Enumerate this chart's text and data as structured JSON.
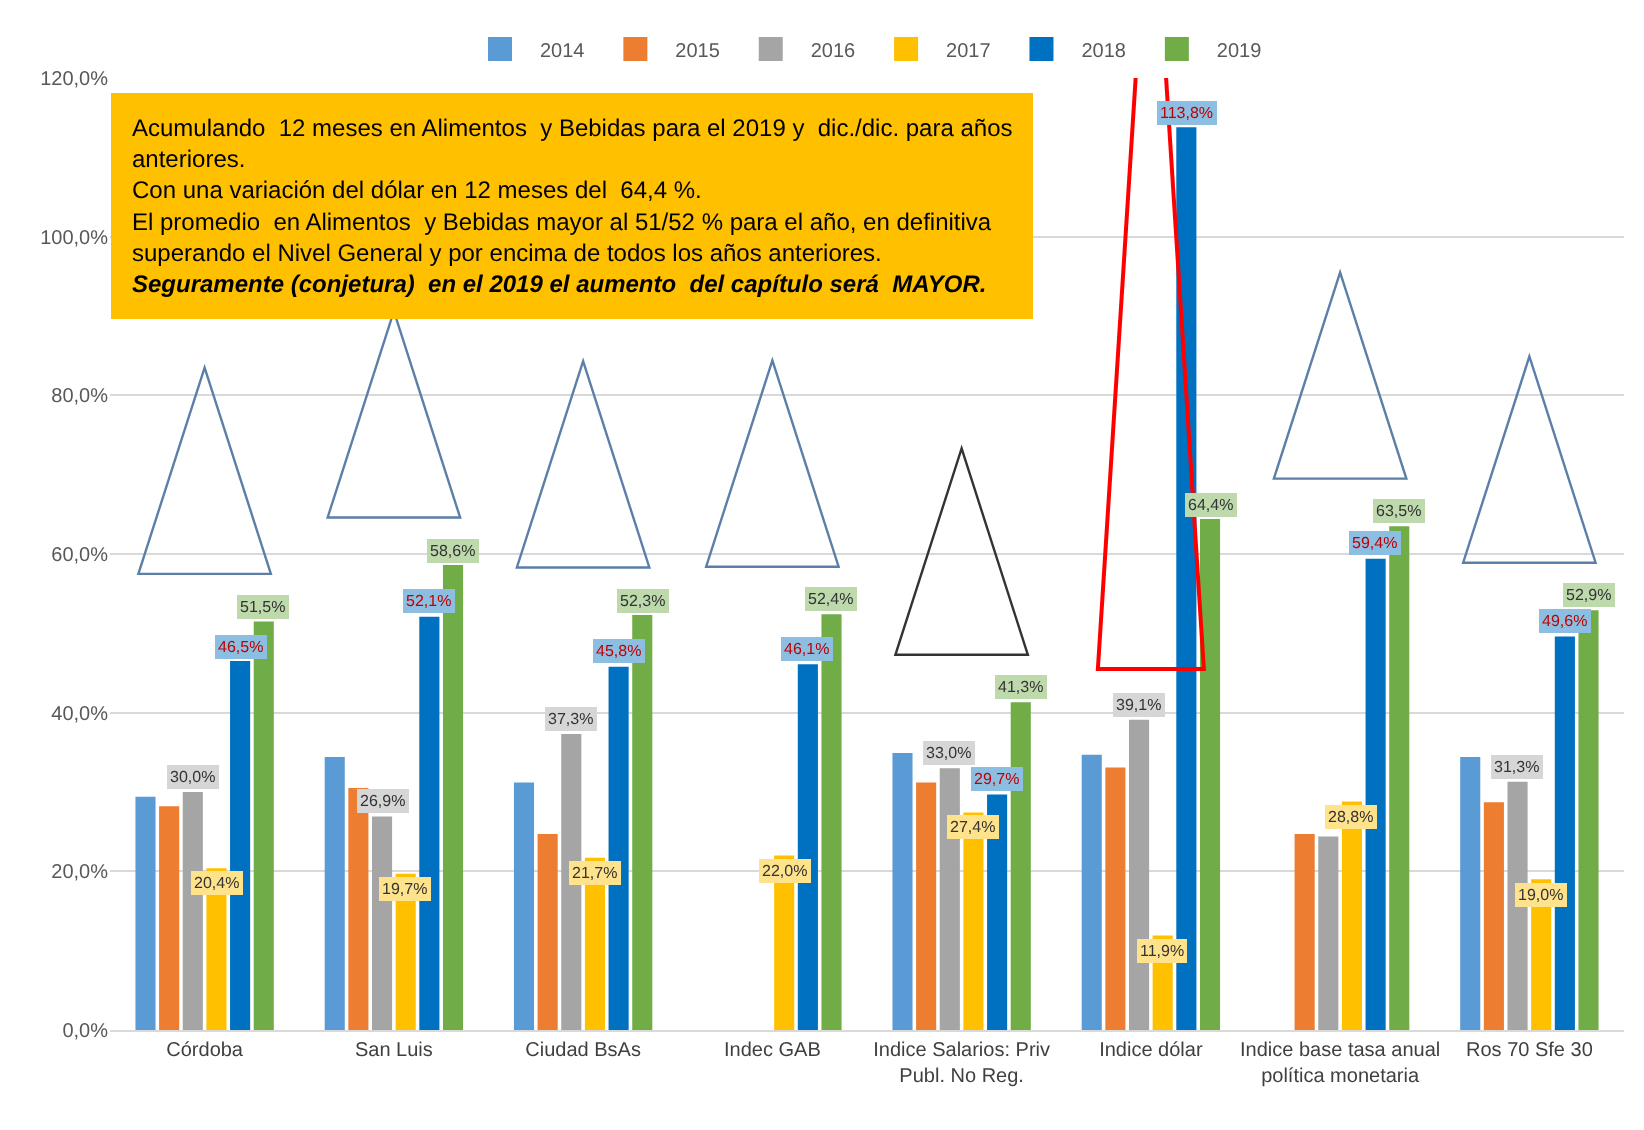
{
  "chart_data": {
    "type": "bar",
    "categories": [
      "Córdoba",
      "San Luis",
      "Ciudad BsAs",
      "Indec GAB",
      "Indice Salarios: Priv Publ. No Reg.",
      "Indice dólar",
      "Indice base tasa anual política monetaria",
      "Ros 70 Sfe 30"
    ],
    "series": [
      {
        "name": "2014",
        "color": "#5b9bd5",
        "values": [
          29.4,
          34.4,
          31.2,
          null,
          34.9,
          34.7,
          null,
          34.4
        ]
      },
      {
        "name": "2015",
        "color": "#ed7d31",
        "values": [
          28.2,
          30.5,
          24.7,
          null,
          31.2,
          33.1,
          24.7,
          28.7
        ]
      },
      {
        "name": "2016",
        "color": "#a5a5a5",
        "values": [
          30.0,
          26.9,
          37.3,
          null,
          33.0,
          39.1,
          24.4,
          31.3
        ],
        "value_labels": [
          "30,0%",
          "26,9%",
          "37,3%",
          null,
          "33,0%",
          "39,1%",
          null,
          "31,3%"
        ]
      },
      {
        "name": "2017",
        "color": "#ffc000",
        "values": [
          20.4,
          19.7,
          21.7,
          22.0,
          27.4,
          11.9,
          28.8,
          19.0
        ],
        "value_labels": [
          "20,4%",
          "19,7%",
          "21,7%",
          "22,0%",
          "27,4%",
          "11,9%",
          "28,8%",
          "19,0%"
        ]
      },
      {
        "name": "2018",
        "color": "#0070c0",
        "values": [
          46.5,
          52.1,
          45.8,
          46.1,
          29.7,
          113.8,
          59.4,
          49.6
        ],
        "value_labels": [
          "46,5%",
          "52,1%",
          "45,8%",
          "46,1%",
          "29,7%",
          "113,8%",
          "59,4%",
          "49,6%"
        ]
      },
      {
        "name": "2019",
        "color": "#70ad47",
        "values": [
          51.5,
          58.6,
          52.3,
          52.4,
          41.3,
          64.4,
          63.5,
          52.9
        ],
        "value_labels": [
          "51,5%",
          "58,6%",
          "52,3%",
          "52,4%",
          "41,3%",
          "64,4%",
          "63,5%",
          "52,9%"
        ]
      }
    ],
    "ylim": [
      0,
      120
    ],
    "yticks": [
      {
        "value": 0,
        "label": "0,0%"
      },
      {
        "value": 20,
        "label": "20,0%"
      },
      {
        "value": 40,
        "label": "40,0%"
      },
      {
        "value": 60,
        "label": "60,0%"
      },
      {
        "value": 80,
        "label": "80,0%"
      },
      {
        "value": 100,
        "label": "100,0%"
      },
      {
        "value": 120,
        "label": "120,0%"
      }
    ],
    "grid": "y",
    "legend": "top",
    "annotations": [
      "Acumulando  12 meses en Alimentos  y Bebidas para el 2019 y  dic./dic. para años\nanteriores.\nCon una variación del dólar en 12 meses del  64,4 %.\nEl promedio  en Alimentos  y Bebidas mayor al 51/52 % para el año, en definitiva\nsuperando el Nivel General y por encima de todos los años anteriores.",
      "Seguramente (conjetura)  en el 2019 el aumento  del capítulo será  MAYOR."
    ]
  }
}
